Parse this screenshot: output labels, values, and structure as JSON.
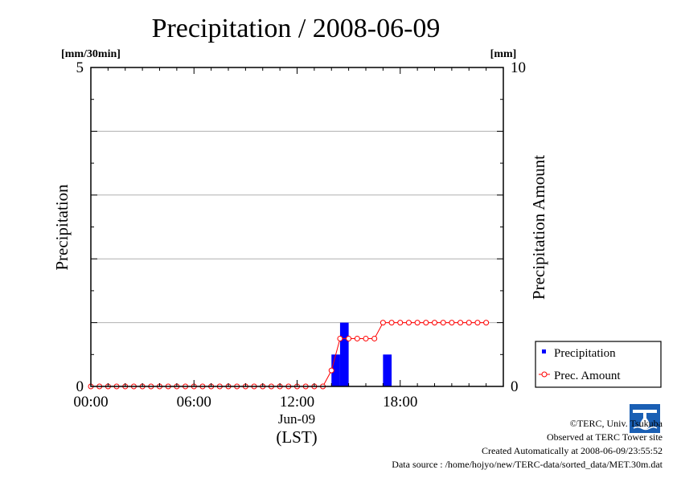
{
  "chart_data": {
    "type": "bar",
    "title": "Precipitation / 2008-06-09",
    "ylabel_left": "Precipitation",
    "ylabel_right": "Precipitation Amount",
    "unit_left": "[mm/30min]",
    "unit_right": "[mm]",
    "ylim_left": [
      0,
      5
    ],
    "ylim_right": [
      0,
      10
    ],
    "left_tick_labels": [
      "0",
      "5"
    ],
    "right_tick_labels": [
      "0",
      "10"
    ],
    "x_tick_labels": [
      "00:00",
      "06:00",
      "12:00",
      "18:00"
    ],
    "x_date_label": "Jun-09",
    "x_axis_label": "(LST)",
    "grid": true,
    "legend_position": "bottom-right",
    "x_hours": [
      0,
      0.5,
      1,
      1.5,
      2,
      2.5,
      3,
      3.5,
      4,
      4.5,
      5,
      5.5,
      6,
      6.5,
      7,
      7.5,
      8,
      8.5,
      9,
      9.5,
      10,
      10.5,
      11,
      11.5,
      12,
      12.5,
      13,
      13.5,
      14,
      14.5,
      15,
      15.5,
      16,
      16.5,
      17,
      17.5,
      18,
      18.5,
      19,
      19.5,
      20,
      20.5,
      21,
      21.5,
      22,
      22.5,
      23
    ],
    "series": [
      {
        "name": "Precipitation",
        "axis": "left",
        "color": "#0000ff",
        "values": [
          0,
          0,
          0,
          0,
          0,
          0,
          0,
          0,
          0,
          0,
          0,
          0,
          0,
          0,
          0,
          0,
          0,
          0,
          0,
          0,
          0,
          0,
          0,
          0,
          0,
          0,
          0,
          0,
          0.5,
          1,
          0,
          0,
          0,
          0,
          0.5,
          0,
          0,
          0,
          0,
          0,
          0,
          0,
          0,
          0,
          0,
          0,
          0
        ]
      },
      {
        "name": "Prec. Amount",
        "axis": "right",
        "color": "#ff0000",
        "values": [
          0,
          0,
          0,
          0,
          0,
          0,
          0,
          0,
          0,
          0,
          0,
          0,
          0,
          0,
          0,
          0,
          0,
          0,
          0,
          0,
          0,
          0,
          0,
          0,
          0,
          0,
          0,
          0,
          0.5,
          1.5,
          1.5,
          1.5,
          1.5,
          1.5,
          2,
          2,
          2,
          2,
          2,
          2,
          2,
          2,
          2,
          2,
          2,
          2,
          2
        ]
      }
    ]
  },
  "footer": {
    "copyright": "©TERC, Univ. Tsukuba",
    "observed": "Observed at TERC Tower site",
    "created": "Created Automatically at 2008-06-09/23:55:52",
    "source": "Data source : /home/hojyo/new/TERC-data/sorted_data/MET.30m.dat"
  }
}
